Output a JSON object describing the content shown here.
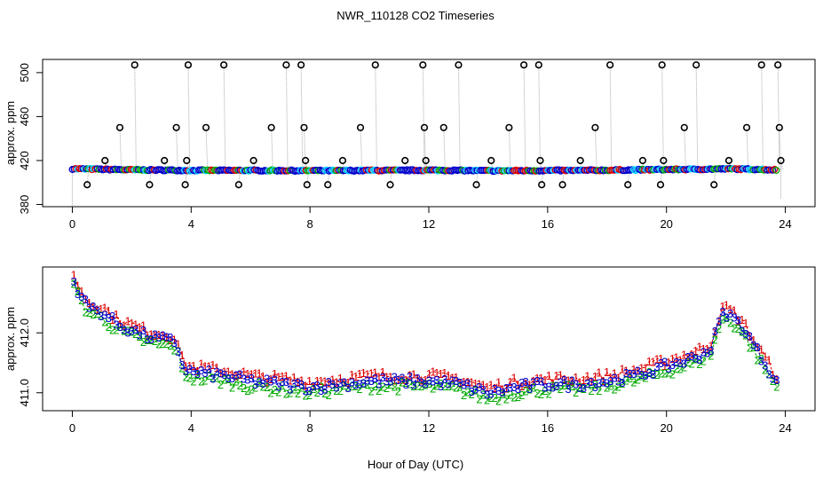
{
  "title": "NWR_110128  CO2 Timeseries",
  "xlabel": "Hour of Day (UTC)",
  "colors": {
    "series1": "#dd0000",
    "series2": "#00aa00",
    "series3": "#0000cc",
    "ring": "#000000",
    "drop_line": "#aaaaaa",
    "cyan": "#00d0ff"
  },
  "chart_data": [
    {
      "type": "scatter",
      "name": "top-panel",
      "ylabel": "approx. ppm",
      "xlim": [
        -1,
        25
      ],
      "ylim": [
        378,
        512
      ],
      "x_ticks": [
        0,
        4,
        8,
        12,
        16,
        20,
        24
      ],
      "x_tick_labels": [
        "0",
        "4",
        "8",
        "12",
        "16",
        "20",
        "24"
      ],
      "y_ticks": [
        380,
        420,
        460,
        500
      ],
      "y_tick_labels": [
        "380",
        "420",
        "460",
        "500"
      ],
      "baseline": {
        "x": [
          0,
          1,
          2,
          3,
          4,
          5,
          6,
          7,
          8,
          9,
          10,
          11,
          12,
          13,
          14,
          15,
          16,
          17,
          18,
          19,
          20,
          21,
          22,
          23,
          23.7
        ],
        "y": [
          412.5,
          412,
          411.5,
          411.3,
          411,
          411,
          411,
          410.9,
          410.8,
          410.8,
          411,
          411,
          411.2,
          411,
          410.7,
          410.8,
          410.9,
          411,
          411.2,
          411.5,
          411.8,
          412,
          412.4,
          412,
          411.5
        ]
      },
      "spikes": {
        "x": [
          0.5,
          1.1,
          1.6,
          2.1,
          2.6,
          3.1,
          3.5,
          3.8,
          3.85,
          3.9,
          4.5,
          5.1,
          5.6,
          6.1,
          6.7,
          7.2,
          7.7,
          7.8,
          7.85,
          7.9,
          8.6,
          9.1,
          9.7,
          10.2,
          10.7,
          11.2,
          11.8,
          11.85,
          11.9,
          12.5,
          13.0,
          13.6,
          14.1,
          14.7,
          15.2,
          15.7,
          15.75,
          15.8,
          16.5,
          17.1,
          17.6,
          18.1,
          18.7,
          19.2,
          19.8,
          19.85,
          19.9,
          20.6,
          21.0,
          21.6,
          22.1,
          22.7,
          23.2,
          23.75,
          23.8,
          23.85
        ],
        "y": [
          398,
          420,
          450,
          507,
          398,
          420,
          450,
          398,
          420,
          507,
          450,
          507,
          398,
          420,
          450,
          507,
          507,
          450,
          420,
          398,
          398,
          420,
          450,
          507,
          398,
          420,
          507,
          450,
          420,
          450,
          507,
          398,
          420,
          450,
          507,
          507,
          420,
          398,
          398,
          420,
          450,
          507,
          398,
          420,
          398,
          507,
          420,
          450,
          507,
          398,
          420,
          450,
          507,
          507,
          450,
          420
        ]
      }
    },
    {
      "type": "scatter",
      "name": "bottom-panel",
      "ylabel": "approx. ppm",
      "xlim": [
        -1,
        25
      ],
      "ylim": [
        410.7,
        413.1
      ],
      "x_ticks": [
        0,
        4,
        8,
        12,
        16,
        20,
        24
      ],
      "x_tick_labels": [
        "0",
        "4",
        "8",
        "12",
        "16",
        "20",
        "24"
      ],
      "y_ticks": [
        411.0,
        412.0
      ],
      "y_tick_labels": [
        "411.0",
        "412.0"
      ],
      "series_markers": [
        "1",
        "2",
        "3"
      ],
      "trend": {
        "x": [
          0,
          0.5,
          1,
          1.5,
          2,
          2.5,
          3,
          3.5,
          3.7,
          4,
          5,
          6,
          7,
          8,
          9,
          10,
          11,
          12,
          13,
          14,
          15,
          16,
          17,
          18,
          19,
          20,
          21,
          21.5,
          21.8,
          22,
          22.5,
          23,
          23.5,
          23.7
        ],
        "y": [
          412.9,
          412.45,
          412.35,
          412.15,
          412.05,
          411.95,
          411.9,
          411.85,
          411.45,
          411.35,
          411.3,
          411.2,
          411.15,
          411.1,
          411.15,
          411.2,
          411.2,
          411.2,
          411.15,
          411.0,
          411.1,
          411.15,
          411.15,
          411.2,
          411.3,
          411.45,
          411.6,
          411.75,
          412.25,
          412.35,
          412.15,
          411.75,
          411.35,
          411.2
        ]
      }
    }
  ]
}
